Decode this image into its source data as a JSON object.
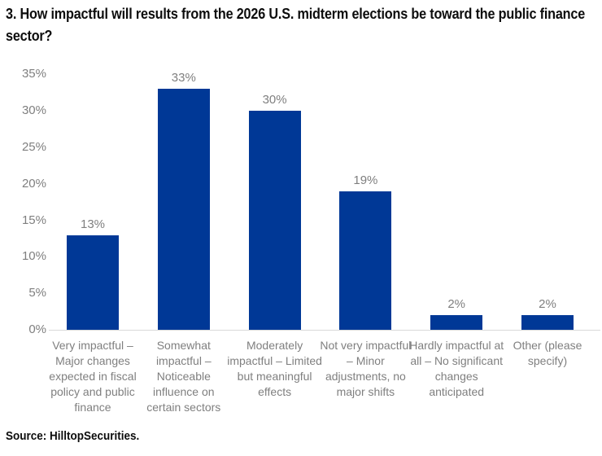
{
  "source": "Source: HilltopSecurities.",
  "chart_data": {
    "type": "bar",
    "title": "3. How impactful will results from the 2026 U.S. midterm elections be toward the public finance sector?",
    "categories": [
      "Very impactful – Major changes expected in fiscal policy and public finance",
      "Somewhat impactful – Noticeable influence on certain sectors",
      "Moderately impactful – Limited but meaningful effects",
      "Not very impactful – Minor adjustments, no major shifts",
      "Hardly impactful at all – No significant changes anticipated",
      "Other (please specify)"
    ],
    "values": [
      13,
      33,
      30,
      19,
      2,
      2
    ],
    "value_labels": [
      "13%",
      "33%",
      "30%",
      "19%",
      "2%",
      "2%"
    ],
    "yticks": [
      0,
      5,
      10,
      15,
      20,
      25,
      30,
      35
    ],
    "ytick_labels": [
      "0%",
      "5%",
      "10%",
      "15%",
      "20%",
      "25%",
      "30%",
      "35%"
    ],
    "ylim": [
      0,
      35
    ],
    "xlabel": "",
    "ylabel": "",
    "grid": false,
    "legend": false,
    "bar_color": "#003896",
    "label_color": "#7f7f7f",
    "axis_color": "#d9d9d9"
  }
}
